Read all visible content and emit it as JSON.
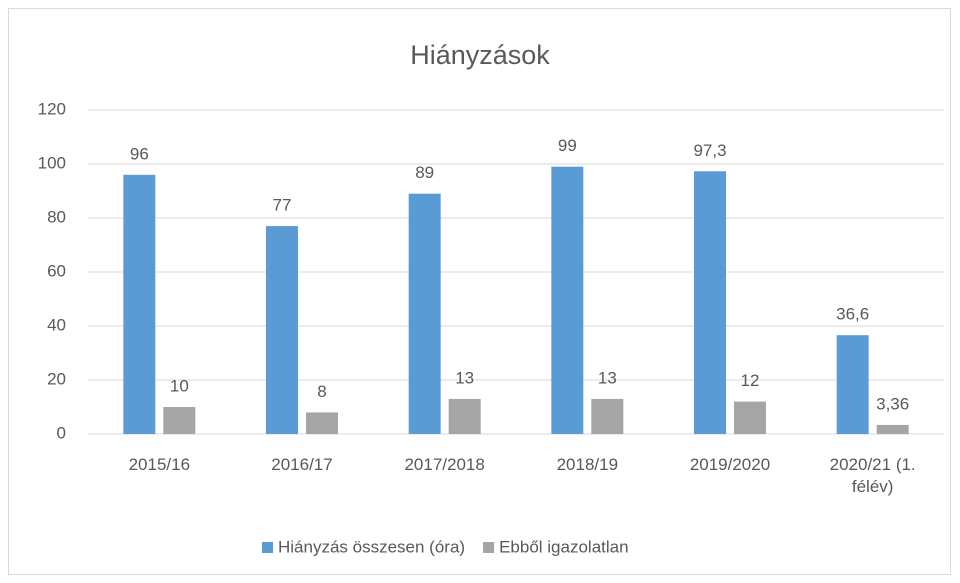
{
  "chart_data": {
    "type": "bar",
    "title": "Hiányzások",
    "categories": [
      "2015/16",
      "2016/17",
      "2017/2018",
      "2018/19",
      "2019/2020",
      "2020/21 (1. félév)"
    ],
    "series": [
      {
        "name": "Hiányzás összesen (óra)",
        "color": "#5b9bd5",
        "values": [
          96,
          77,
          89,
          99,
          97.3,
          36.6
        ],
        "value_labels": [
          "96",
          "77",
          "89",
          "99",
          "97,3",
          "36,6"
        ]
      },
      {
        "name": "Ebből igazolatlan",
        "color": "#a5a5a5",
        "values": [
          10,
          8,
          13,
          13,
          12,
          3.36
        ],
        "value_labels": [
          "10",
          "8",
          "13",
          "13",
          "12",
          "3,36"
        ]
      }
    ],
    "ylim": [
      0,
      120
    ],
    "yticks": [
      0,
      20,
      40,
      60,
      80,
      100,
      120
    ],
    "grid": true,
    "legend": "bottom"
  }
}
